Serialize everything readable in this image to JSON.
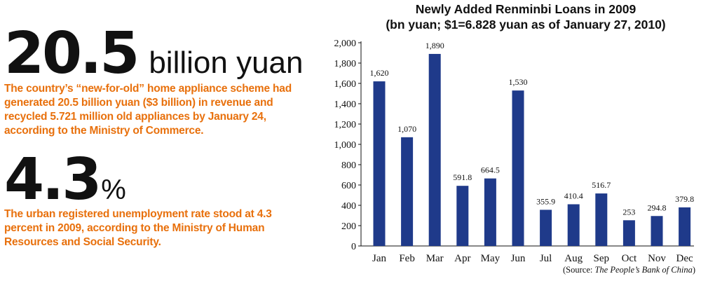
{
  "stats": [
    {
      "number": "20.5",
      "unit": "billion yuan",
      "description": "The country’s “new-for-old” home appliance scheme had generated 20.5 billion yuan ($3 billion) in revenue and recycled 5.721 million old appliances by January 24, according to the Ministry of Commerce."
    },
    {
      "number": "4.3",
      "unit": "%",
      "description": "The urban registered unemployment rate stood at 4.3 percent in 2009, according to the Ministry of Human Resources and Social Security."
    }
  ],
  "source": {
    "prefix": "(Source: ",
    "name": "The People’s Bank of China",
    "suffix": ")"
  },
  "chart_data": {
    "type": "bar",
    "title": "Newly Added Renminbi Loans in 2009",
    "subtitle": "(bn yuan; $1=6.828 yuan as of January 27, 2010)",
    "categories": [
      "Jan",
      "Feb",
      "Mar",
      "Apr",
      "May",
      "Jun",
      "Jul",
      "Aug",
      "Sep",
      "Oct",
      "Nov",
      "Dec"
    ],
    "values": [
      1620,
      1070,
      1890,
      591.8,
      664.5,
      1530,
      355.9,
      410.4,
      516.7,
      253,
      294.8,
      379.8
    ],
    "value_labels": [
      "1,620",
      "1,070",
      "1,890",
      "591.8",
      "664.5",
      "1,530",
      "355.9",
      "410.4",
      "516.7",
      "253",
      "294.8",
      "379.8"
    ],
    "y_ticks": [
      0,
      200,
      400,
      600,
      800,
      1000,
      1200,
      1400,
      1600,
      1800,
      2000
    ],
    "y_tick_labels": [
      "0",
      "200",
      "400",
      "600",
      "800",
      "1,000",
      "1,200",
      "1,400",
      "1,600",
      "1,800",
      "2,000"
    ],
    "ylim": [
      0,
      2000
    ],
    "xlabel": "",
    "ylabel": "",
    "grid": false,
    "bar_color": "#1f3a8a"
  }
}
